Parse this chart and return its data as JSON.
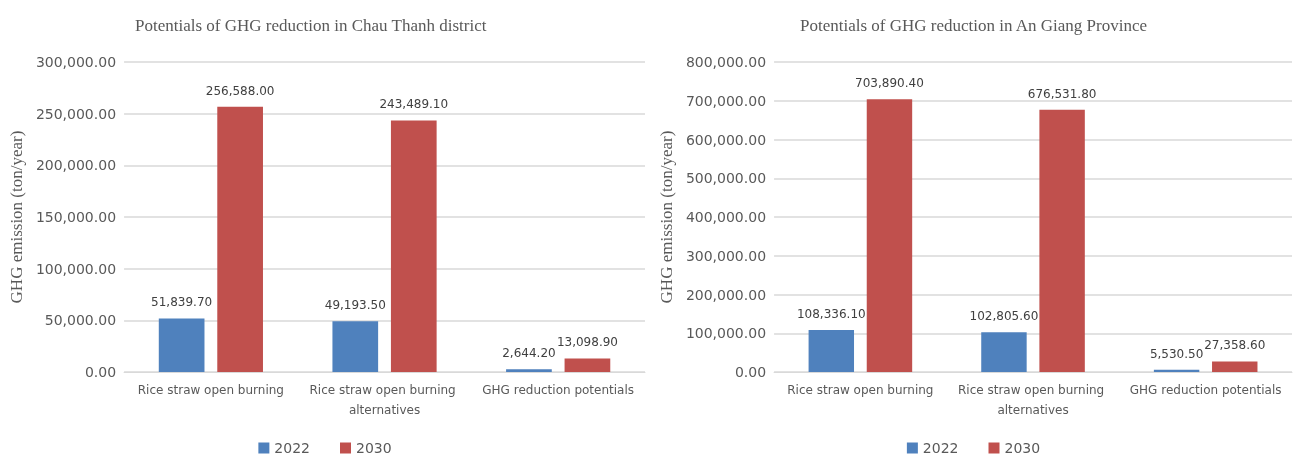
{
  "chart_data": [
    {
      "type": "bar",
      "title": "Potentials of GHG reduction in Chau Thanh district",
      "ylabel": "GHG emission (ton/year)",
      "categories": [
        "Rice straw open burning",
        "Rice straw open burning alternatives",
        "GHG reduction potentials"
      ],
      "series": [
        {
          "name": "2022",
          "color": "#4f81bd",
          "values": [
            51839.7,
            49193.5,
            2644.2
          ],
          "value_labels": [
            "51,839.70",
            "49,193.50",
            "2,644.20"
          ]
        },
        {
          "name": "2030",
          "color": "#c0504d",
          "values": [
            256588.0,
            243489.1,
            13098.9
          ],
          "value_labels": [
            "256,588.00",
            "243,489.10",
            "13,098.90"
          ]
        }
      ],
      "ylim": [
        0,
        300000
      ],
      "yticks": [
        {
          "value": 0,
          "label": "0.00"
        },
        {
          "value": 50000,
          "label": "50,000.00"
        },
        {
          "value": 100000,
          "label": "100,000.00"
        },
        {
          "value": 150000,
          "label": "150,000.00"
        },
        {
          "value": 200000,
          "label": "200,000.00"
        },
        {
          "value": 250000,
          "label": "250,000.00"
        },
        {
          "value": 300000,
          "label": "300,000.00"
        }
      ],
      "grid": "y",
      "legend": "bottom"
    },
    {
      "type": "bar",
      "title": "Potentials of GHG reduction in An Giang Province",
      "ylabel": "GHG emission (ton/year)",
      "categories": [
        "Rice straw open burning",
        "Rice straw open burning alternatives",
        "GHG reduction potentials"
      ],
      "series": [
        {
          "name": "2022",
          "color": "#4f81bd",
          "values": [
            108336.1,
            102805.6,
            5530.5
          ],
          "value_labels": [
            "108,336.10",
            "102,805.60",
            "5,530.50"
          ]
        },
        {
          "name": "2030",
          "color": "#c0504d",
          "values": [
            703890.4,
            676531.8,
            27358.6
          ],
          "value_labels": [
            "703,890.40",
            "676,531.80",
            "27,358.60"
          ]
        }
      ],
      "ylim": [
        0,
        800000
      ],
      "yticks": [
        {
          "value": 0,
          "label": "0.00"
        },
        {
          "value": 100000,
          "label": "100,000.00"
        },
        {
          "value": 200000,
          "label": "200,000.00"
        },
        {
          "value": 300000,
          "label": "300,000.00"
        },
        {
          "value": 400000,
          "label": "400,000.00"
        },
        {
          "value": 500000,
          "label": "500,000.00"
        },
        {
          "value": 600000,
          "label": "600,000.00"
        },
        {
          "value": 700000,
          "label": "700,000.00"
        },
        {
          "value": 800000,
          "label": "800,000.00"
        }
      ],
      "grid": "y",
      "legend": "bottom"
    }
  ]
}
